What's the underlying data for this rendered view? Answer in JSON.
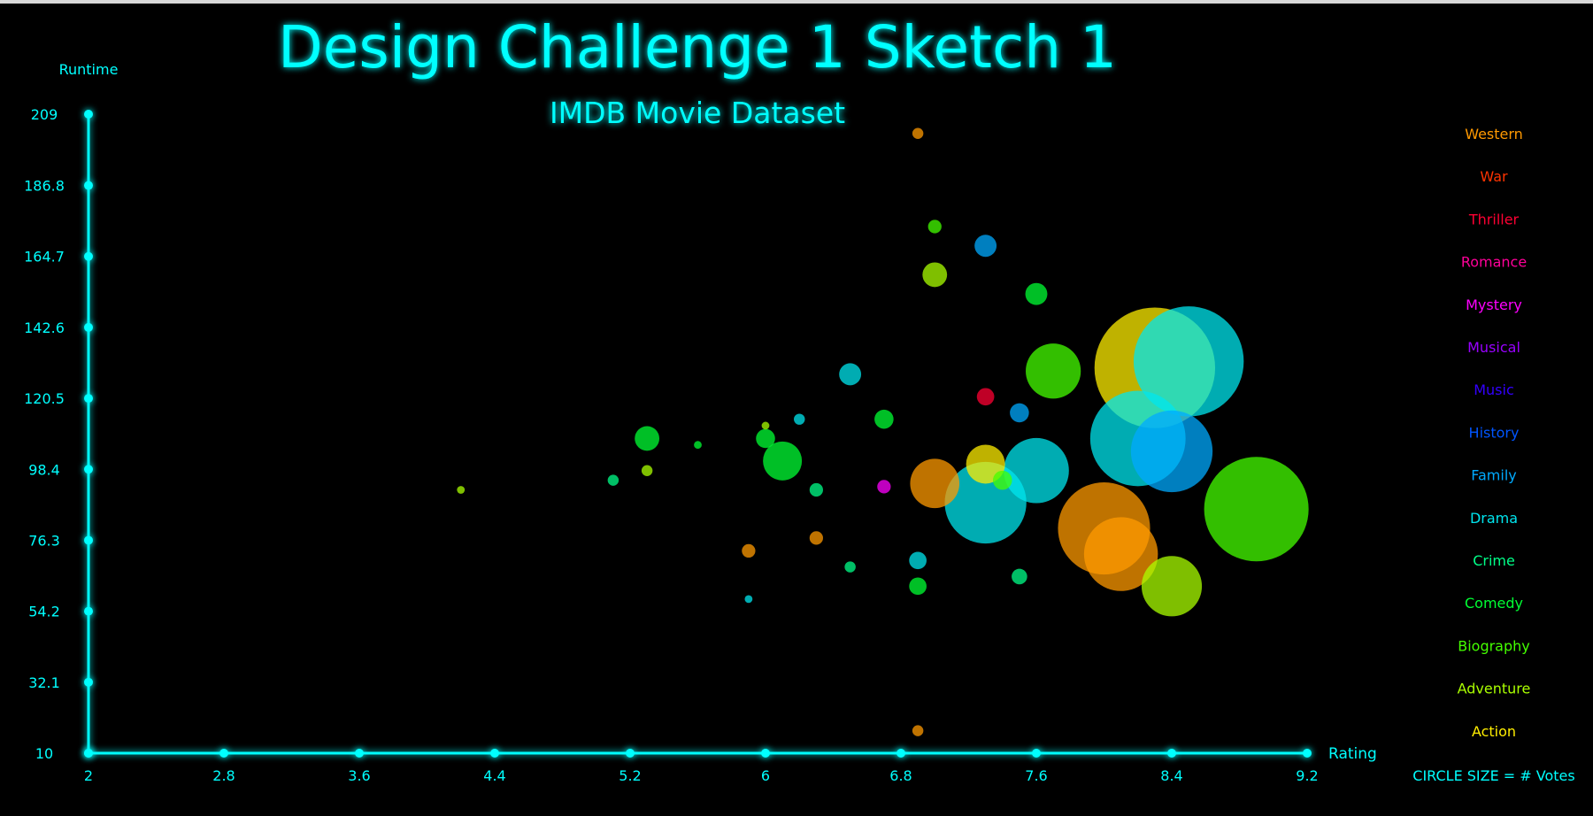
{
  "chart_data": {
    "type": "scatter",
    "title": "Design Challenge 1 Sketch 1",
    "subtitle": "IMDB Movie Dataset",
    "xlabel": "Rating",
    "ylabel": "Runtime",
    "xlim": [
      2,
      9.2
    ],
    "ylim": [
      10,
      209
    ],
    "x_ticks": [
      "2",
      "2.8",
      "3.6",
      "4.4",
      "5.2",
      "6",
      "6.8",
      "7.6",
      "8.4",
      "9.2"
    ],
    "y_ticks": [
      "10",
      "32.1",
      "54.2",
      "76.3",
      "98.4",
      "120.5",
      "142.6",
      "164.7",
      "186.8",
      "209"
    ],
    "size_note": "CIRCLE SIZE = # Votes",
    "legend_position": "right",
    "legend": [
      {
        "name": "Western",
        "color": "#ff9900"
      },
      {
        "name": "War",
        "color": "#ff3300"
      },
      {
        "name": "Thriller",
        "color": "#ff0033"
      },
      {
        "name": "Romance",
        "color": "#ff0099"
      },
      {
        "name": "Mystery",
        "color": "#ff00ff"
      },
      {
        "name": "Musical",
        "color": "#9900ff"
      },
      {
        "name": "Music",
        "color": "#3300ff"
      },
      {
        "name": "History",
        "color": "#0055ff"
      },
      {
        "name": "Family",
        "color": "#00aaff"
      },
      {
        "name": "Drama",
        "color": "#00e5ee"
      },
      {
        "name": "Crime",
        "color": "#00ff88"
      },
      {
        "name": "Comedy",
        "color": "#00ff33"
      },
      {
        "name": "Biography",
        "color": "#44ff00"
      },
      {
        "name": "Adventure",
        "color": "#aaff00"
      },
      {
        "name": "Action",
        "color": "#ffee00"
      }
    ],
    "points": [
      {
        "genre": "Action",
        "x": 8.3,
        "y": 130,
        "votes": 240
      },
      {
        "genre": "Drama",
        "x": 8.5,
        "y": 132,
        "votes": 200
      },
      {
        "genre": "Family",
        "x": 8.4,
        "y": 104,
        "votes": 110
      },
      {
        "genre": "Drama",
        "x": 8.2,
        "y": 108,
        "votes": 150
      },
      {
        "genre": "Biography",
        "x": 8.9,
        "y": 86,
        "votes": 180
      },
      {
        "genre": "Western",
        "x": 8.0,
        "y": 80,
        "votes": 140
      },
      {
        "genre": "Western",
        "x": 8.1,
        "y": 72,
        "votes": 90
      },
      {
        "genre": "Adventure",
        "x": 8.4,
        "y": 62,
        "votes": 60
      },
      {
        "genre": "Biography",
        "x": 7.7,
        "y": 129,
        "votes": 50
      },
      {
        "genre": "Drama",
        "x": 7.3,
        "y": 88,
        "votes": 110
      },
      {
        "genre": "Drama",
        "x": 7.6,
        "y": 98,
        "votes": 70
      },
      {
        "genre": "Western",
        "x": 7.0,
        "y": 94,
        "votes": 40
      },
      {
        "genre": "Action",
        "x": 7.3,
        "y": 100,
        "votes": 25
      },
      {
        "genre": "Comedy",
        "x": 6.1,
        "y": 101,
        "votes": 25
      },
      {
        "genre": "Comedy",
        "x": 5.3,
        "y": 108,
        "votes": 10
      },
      {
        "genre": "Family",
        "x": 7.3,
        "y": 168,
        "votes": 8
      },
      {
        "genre": "Adventure",
        "x": 7.0,
        "y": 159,
        "votes": 10
      },
      {
        "genre": "Comedy",
        "x": 7.6,
        "y": 153,
        "votes": 8
      },
      {
        "genre": "Biography",
        "x": 7.0,
        "y": 174,
        "votes": 3
      },
      {
        "genre": "Western",
        "x": 6.9,
        "y": 203,
        "votes": 2
      },
      {
        "genre": "Western",
        "x": 6.9,
        "y": 17,
        "votes": 2
      },
      {
        "genre": "Drama",
        "x": 6.5,
        "y": 128,
        "votes": 8
      },
      {
        "genre": "Thriller",
        "x": 7.3,
        "y": 121,
        "votes": 5
      },
      {
        "genre": "Family",
        "x": 7.5,
        "y": 116,
        "votes": 6
      },
      {
        "genre": "Comedy",
        "x": 6.7,
        "y": 114,
        "votes": 6
      },
      {
        "genre": "Comedy",
        "x": 6.0,
        "y": 108,
        "votes": 6
      },
      {
        "genre": "Biography",
        "x": 7.4,
        "y": 95,
        "votes": 6
      },
      {
        "genre": "Mystery",
        "x": 6.7,
        "y": 93,
        "votes": 3
      },
      {
        "genre": "Western",
        "x": 5.9,
        "y": 73,
        "votes": 3
      },
      {
        "genre": "Western",
        "x": 6.3,
        "y": 77,
        "votes": 3
      },
      {
        "genre": "Comedy",
        "x": 6.9,
        "y": 62,
        "votes": 5
      },
      {
        "genre": "Drama",
        "x": 6.9,
        "y": 70,
        "votes": 5
      },
      {
        "genre": "Crime",
        "x": 7.5,
        "y": 65,
        "votes": 4
      },
      {
        "genre": "Adventure",
        "x": 5.3,
        "y": 98,
        "votes": 2
      },
      {
        "genre": "Crime",
        "x": 5.1,
        "y": 95,
        "votes": 2
      },
      {
        "genre": "Adventure",
        "x": 4.2,
        "y": 92,
        "votes": 1
      },
      {
        "genre": "Crime",
        "x": 6.5,
        "y": 68,
        "votes": 2
      },
      {
        "genre": "Drama",
        "x": 5.9,
        "y": 58,
        "votes": 1
      },
      {
        "genre": "Crime",
        "x": 6.3,
        "y": 92,
        "votes": 3
      },
      {
        "genre": "Drama",
        "x": 6.2,
        "y": 114,
        "votes": 2
      },
      {
        "genre": "Adventure",
        "x": 6.0,
        "y": 112,
        "votes": 1
      },
      {
        "genre": "Comedy",
        "x": 5.6,
        "y": 106,
        "votes": 1
      }
    ]
  }
}
